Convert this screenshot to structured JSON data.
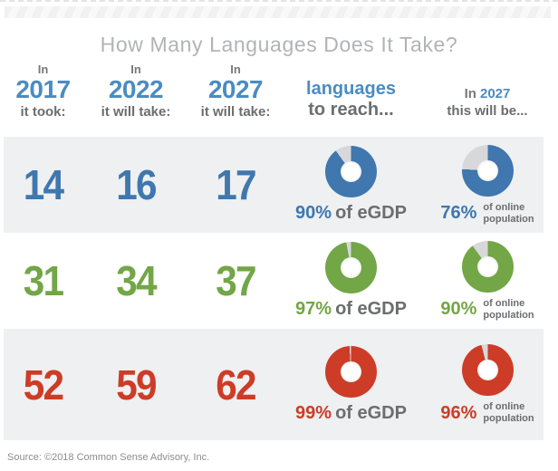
{
  "title": "How Many Languages Does It Take?",
  "source_note": "Source: ©2018 Common Sense Advisory, Inc.",
  "colors": {
    "blue": "#3f77ae",
    "green": "#72a646",
    "red": "#cd3c27",
    "year_blue": "#4a8cc2",
    "heading_gray": "#77787a",
    "dark_gray": "#6c6d6f",
    "title_gray": "#b2b3b5",
    "band_gray": "#eef0f1",
    "donut_rest": "#d8d8da",
    "source_gray": "#8b8c8e"
  },
  "header": {
    "col_2017": {
      "pre": "In",
      "year": "2017",
      "sub": "it took:"
    },
    "col_2022": {
      "pre": "In",
      "year": "2022",
      "sub": "it will take:"
    },
    "col_2027": {
      "pre": "In",
      "year": "2027",
      "sub": "it will take:"
    },
    "col_reach": {
      "line1": "languages",
      "line2": "to reach..."
    },
    "col_online": {
      "pre": "In",
      "year": "2027",
      "line2": "this will be..."
    }
  },
  "rows": [
    {
      "color": "blue",
      "values": [
        "14",
        "16",
        "17"
      ],
      "egdp": {
        "pct": 90,
        "pct_label": "90%",
        "suffix": "of eGDP"
      },
      "online": {
        "pct": 76,
        "pct_label": "76%",
        "suffix_line1": "of online",
        "suffix_line2": "population"
      }
    },
    {
      "color": "green",
      "values": [
        "31",
        "34",
        "37"
      ],
      "egdp": {
        "pct": 97,
        "pct_label": "97%",
        "suffix": "of eGDP"
      },
      "online": {
        "pct": 90,
        "pct_label": "90%",
        "suffix_line1": "of online",
        "suffix_line2": "population"
      }
    },
    {
      "color": "red",
      "values": [
        "52",
        "59",
        "62"
      ],
      "egdp": {
        "pct": 99,
        "pct_label": "99%",
        "suffix": "of eGDP"
      },
      "online": {
        "pct": 96,
        "pct_label": "96%",
        "suffix_line1": "of online",
        "suffix_line2": "population"
      }
    }
  ],
  "chart_data": {
    "type": "table",
    "title": "How Many Languages Does It Take?",
    "columns": [
      "In 2017 it took:",
      "In 2022 it will take:",
      "In 2027 it will take:",
      "languages to reach...",
      "In 2027 this will be..."
    ],
    "rows": [
      {
        "in_2017": 14,
        "in_2022": 16,
        "in_2027": 17,
        "egdp_reach_pct": 90,
        "online_population_pct_2027": 76,
        "color": "#3f77ae"
      },
      {
        "in_2017": 31,
        "in_2022": 34,
        "in_2027": 37,
        "egdp_reach_pct": 97,
        "online_population_pct_2027": 90,
        "color": "#72a646"
      },
      {
        "in_2017": 52,
        "in_2022": 59,
        "in_2027": 62,
        "egdp_reach_pct": 99,
        "online_population_pct_2027": 96,
        "color": "#cd3c27"
      }
    ],
    "donut_charts": [
      {
        "row": 0,
        "series": "eGDP reach",
        "value_pct": 90,
        "rest_pct": 10
      },
      {
        "row": 0,
        "series": "online population 2027",
        "value_pct": 76,
        "rest_pct": 24
      },
      {
        "row": 1,
        "series": "eGDP reach",
        "value_pct": 97,
        "rest_pct": 3
      },
      {
        "row": 1,
        "series": "online population 2027",
        "value_pct": 90,
        "rest_pct": 10
      },
      {
        "row": 2,
        "series": "eGDP reach",
        "value_pct": 99,
        "rest_pct": 1
      },
      {
        "row": 2,
        "series": "online population 2027",
        "value_pct": 96,
        "rest_pct": 4
      }
    ],
    "legend_position": "none",
    "source": "©2018 Common Sense Advisory, Inc."
  }
}
